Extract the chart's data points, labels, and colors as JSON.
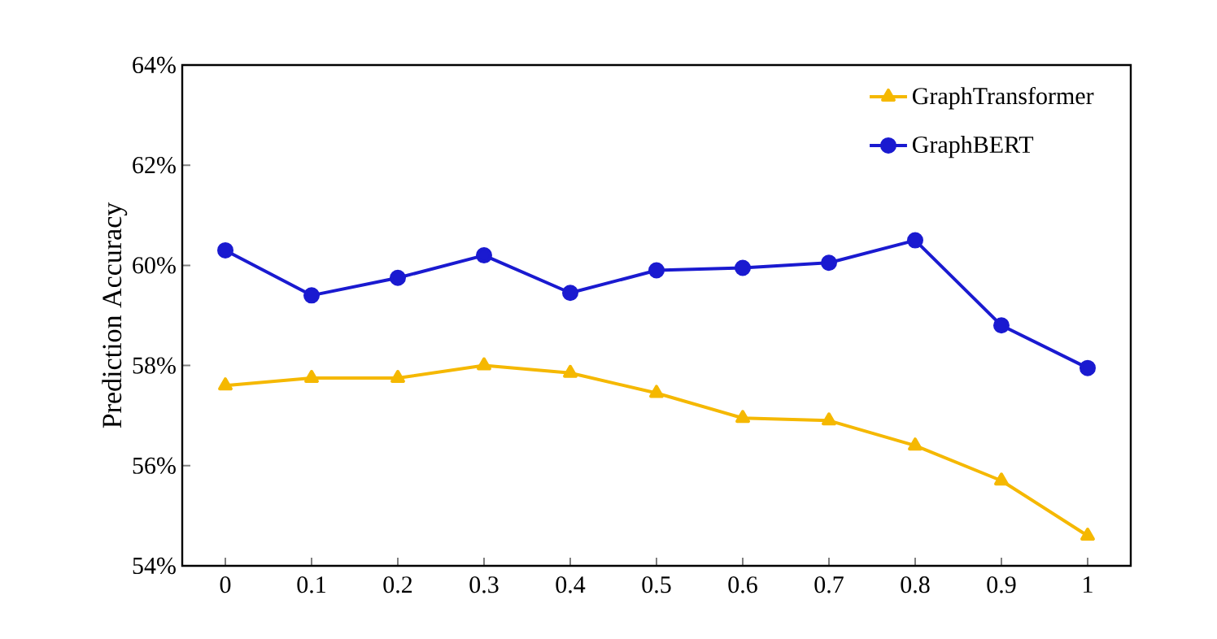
{
  "chart_data": {
    "type": "line",
    "ylabel": "Prediction Accuracy",
    "x": [
      0,
      0.1,
      0.2,
      0.3,
      0.4,
      0.5,
      0.6,
      0.7,
      0.8,
      0.9,
      1
    ],
    "series": [
      {
        "name": "GraphTransformer",
        "color": "#f5b800",
        "marker": "triangle",
        "values": [
          57.6,
          57.75,
          57.75,
          58.0,
          57.85,
          57.45,
          56.95,
          56.9,
          56.4,
          55.7,
          54.6
        ]
      },
      {
        "name": "GraphBERT",
        "color": "#1a1ad0",
        "marker": "circle",
        "values": [
          60.3,
          59.4,
          59.75,
          60.2,
          59.45,
          59.9,
          59.95,
          60.05,
          60.5,
          58.8,
          57.95
        ]
      }
    ],
    "xlim": [
      -0.05,
      1.05
    ],
    "xticks": [
      0,
      0.1,
      0.2,
      0.3,
      0.4,
      0.5,
      0.6,
      0.7,
      0.8,
      0.9,
      1
    ],
    "ylim": [
      54,
      64
    ],
    "yticks": [
      {
        "value": 54,
        "label": "54%"
      },
      {
        "value": 56,
        "label": "56%"
      },
      {
        "value": 58,
        "label": "58%"
      },
      {
        "value": 60,
        "label": "60%"
      },
      {
        "value": 62,
        "label": "62%"
      },
      {
        "value": 64,
        "label": "64%"
      }
    ],
    "legend": "top right",
    "grid": false,
    "line_style": "solid"
  }
}
